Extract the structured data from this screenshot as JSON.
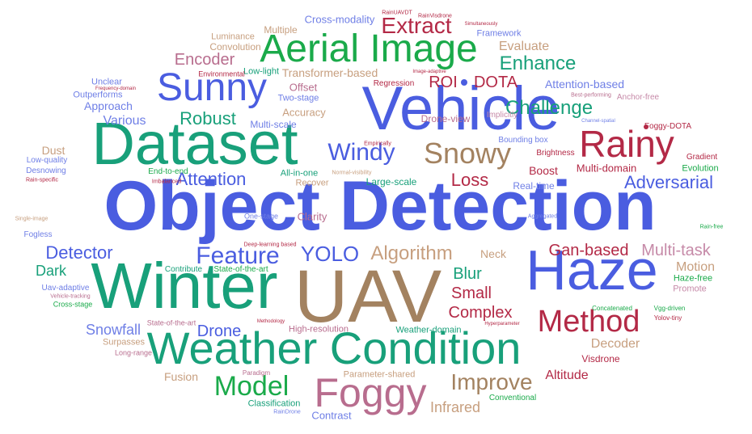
{
  "colors": {
    "blue": "#4a5de0",
    "blue_light": "#6f7fe6",
    "green": "#1aaa4a",
    "green_light": "#44bb55",
    "teal": "#18a07a",
    "brown": "#a38260",
    "brown_light": "#c6a484",
    "mauve": "#b86d8e",
    "crimson": "#b32946",
    "tan": "#c79f7f",
    "pink": "#c68aa8"
  },
  "words": [
    "Object Detection",
    "Vehicle",
    "UAV",
    "Winter",
    "Dataset",
    "Haze",
    "Weather Condition",
    "Sunny",
    "Aerial Image",
    "Foggy",
    "Rainy",
    "Method",
    "Snowy",
    "Model",
    "Extract",
    "Windy",
    "Feature",
    "YOLO",
    "Improve",
    "Algorithm",
    "Enhance",
    "Challenge",
    "Adversarial",
    "Detector",
    "Attention",
    "Robust",
    "Encoder",
    "Multi-task",
    "Gan-based",
    "Blur",
    "Loss",
    "Small",
    "Complex",
    "Drone",
    "ROI",
    "DOTA",
    "Dark",
    "Infrared",
    "Snowfall",
    "Altitude",
    "Motion",
    "Decoder",
    "Contrast",
    "Fusion",
    "Evaluate",
    "Attention-based",
    "Various",
    "Dust",
    "Approach",
    "Boost",
    "Multi-domain",
    "Real-time",
    "Large-scale",
    "Neck",
    "Clarity",
    "Offset",
    "Accuracy",
    "Multi-scale",
    "Two-stage",
    "Low-light",
    "Transformer-based",
    "Convolution",
    "Luminance",
    "Multiple",
    "Cross-modality",
    "Framework",
    "Unclear",
    "Outperforms",
    "Regression",
    "Implicitly",
    "Brightness",
    "Bounding box",
    "Drone-view",
    "All-in-one",
    "Recover",
    "End-to-end",
    "Gradient",
    "Evolution",
    "Haze-free",
    "Promote",
    "Visdrone",
    "Conventional",
    "Classification",
    "Parameter-shared",
    "Weather-domain",
    "High-resolution",
    "State-of-the-art",
    "Contribute",
    "Surpasses",
    "Long-range",
    "Paradigm",
    "Cross-stage",
    "Uav-adaptive",
    "Vehicle-tracking",
    "Fogless",
    "Desnowing",
    "Low-quality",
    "Rain-specific",
    "Single-image",
    "Imbalanced",
    "Environmental",
    "Frequency-domain",
    "Empirically",
    "Normal-visibility",
    "One-stage",
    "Deep-learning based",
    "Aggregated",
    "Foggy-DOTA",
    "Channel-spatial",
    "Best-performing",
    "Anchor-free",
    "Image-adaptive",
    "Simultaneously",
    "RainVisdrone",
    "RainUAVDT",
    "Hyperparameter",
    "Methodology",
    "Concatenated",
    "Vgg-driven",
    "Yolov-tiny",
    "Rain-free",
    "RainDrone"
  ]
}
